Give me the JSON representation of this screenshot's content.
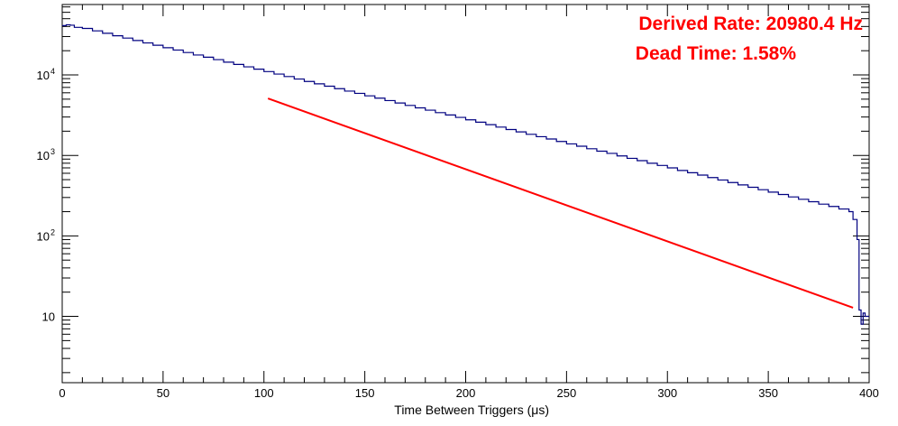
{
  "chart_data": {
    "type": "line",
    "title": "",
    "xlabel": "Time Between Triggers (μs)",
    "ylabel": "",
    "xlim": [
      0,
      400
    ],
    "ylim": [
      1.5,
      75000
    ],
    "y_scale": "log",
    "grid": false,
    "legend": "none",
    "x_tick_labels": [
      "0",
      "50",
      "100",
      "150",
      "200",
      "250",
      "300",
      "350",
      "400"
    ],
    "x_ticks": [
      0,
      50,
      100,
      150,
      200,
      250,
      300,
      350,
      400
    ],
    "y_tick_labels": [
      {
        "value": 10,
        "mantissa": "10",
        "exponent": ""
      },
      {
        "value": 100,
        "mantissa": "10",
        "exponent": "2"
      },
      {
        "value": 1000,
        "mantissa": "10",
        "exponent": "3"
      },
      {
        "value": 10000,
        "mantissa": "10",
        "exponent": "4"
      }
    ],
    "series": [
      {
        "color": "#000080",
        "style": "histogram",
        "points": [
          [
            0,
            41000
          ],
          [
            2,
            42000
          ],
          [
            4,
            41500
          ],
          [
            6,
            39000
          ],
          [
            10,
            37800
          ],
          [
            15,
            35300
          ],
          [
            20,
            32900
          ],
          [
            25,
            30700
          ],
          [
            30,
            28700
          ],
          [
            35,
            26800
          ],
          [
            40,
            25000
          ],
          [
            45,
            23400
          ],
          [
            50,
            21800
          ],
          [
            55,
            20400
          ],
          [
            60,
            19000
          ],
          [
            65,
            17700
          ],
          [
            70,
            16600
          ],
          [
            75,
            15500
          ],
          [
            80,
            14400
          ],
          [
            85,
            13500
          ],
          [
            90,
            12600
          ],
          [
            95,
            11800
          ],
          [
            100,
            11000
          ],
          [
            105,
            10250
          ],
          [
            110,
            9550
          ],
          [
            115,
            8900
          ],
          [
            120,
            8300
          ],
          [
            125,
            7750
          ],
          [
            130,
            7250
          ],
          [
            135,
            6750
          ],
          [
            140,
            6300
          ],
          [
            145,
            5900
          ],
          [
            150,
            5500
          ],
          [
            155,
            5150
          ],
          [
            160,
            4800
          ],
          [
            165,
            4480
          ],
          [
            170,
            4180
          ],
          [
            175,
            3900
          ],
          [
            180,
            3650
          ],
          [
            185,
            3400
          ],
          [
            190,
            3180
          ],
          [
            195,
            2970
          ],
          [
            200,
            2770
          ],
          [
            205,
            2590
          ],
          [
            210,
            2410
          ],
          [
            215,
            2250
          ],
          [
            220,
            2100
          ],
          [
            225,
            1960
          ],
          [
            230,
            1830
          ],
          [
            235,
            1710
          ],
          [
            240,
            1600
          ],
          [
            245,
            1490
          ],
          [
            250,
            1390
          ],
          [
            255,
            1300
          ],
          [
            260,
            1210
          ],
          [
            265,
            1130
          ],
          [
            270,
            1060
          ],
          [
            275,
            985
          ],
          [
            280,
            920
          ],
          [
            285,
            860
          ],
          [
            290,
            800
          ],
          [
            295,
            750
          ],
          [
            300,
            700
          ],
          [
            305,
            650
          ],
          [
            310,
            610
          ],
          [
            315,
            570
          ],
          [
            320,
            530
          ],
          [
            325,
            495
          ],
          [
            330,
            460
          ],
          [
            335,
            430
          ],
          [
            340,
            402
          ],
          [
            345,
            375
          ],
          [
            350,
            350
          ],
          [
            355,
            327
          ],
          [
            360,
            305
          ],
          [
            365,
            285
          ],
          [
            370,
            266
          ],
          [
            375,
            248
          ],
          [
            380,
            232
          ],
          [
            385,
            216
          ],
          [
            390,
            200
          ],
          [
            392,
            160
          ],
          [
            394,
            90
          ],
          [
            395,
            12
          ],
          [
            396,
            8
          ],
          [
            397,
            11
          ],
          [
            398,
            10
          ],
          [
            400,
            10
          ]
        ]
      },
      {
        "color": "#ff0000",
        "style": "fit-line",
        "x_range": [
          102,
          392
        ],
        "points": [
          [
            102,
            5100
          ],
          [
            392,
            12.8
          ]
        ]
      }
    ],
    "annotations": [
      {
        "text": "Derived Rate: 20980.4 Hz",
        "color": "#ff0000"
      },
      {
        "text": "Dead Time: 1.58%",
        "color": "#ff0000"
      }
    ]
  }
}
